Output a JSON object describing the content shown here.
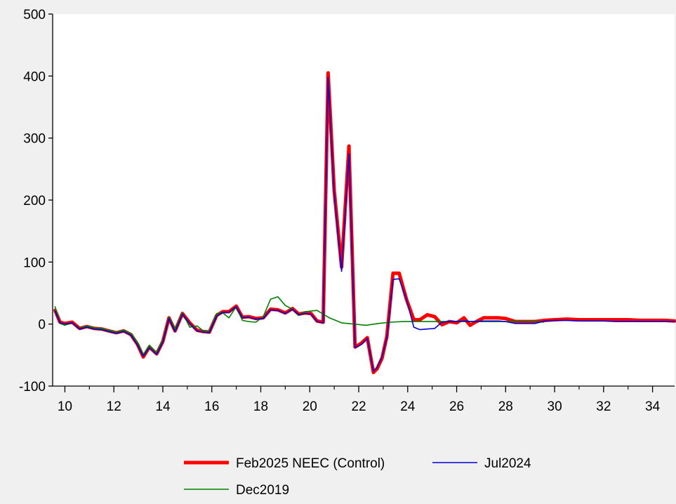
{
  "chart_data": {
    "type": "line",
    "title": "",
    "xlabel": "",
    "ylabel": "",
    "xlim": [
      9.5,
      34.9
    ],
    "ylim": [
      -100,
      500
    ],
    "x_ticks": [
      10,
      12,
      14,
      16,
      18,
      20,
      22,
      24,
      26,
      28,
      30,
      32,
      34
    ],
    "x_tick_labels": [
      "10",
      "12",
      "14",
      "16",
      "18",
      "20",
      "22",
      "24",
      "26",
      "28",
      "30",
      "32",
      "34"
    ],
    "y_ticks": [
      -100,
      0,
      100,
      200,
      300,
      400,
      500
    ],
    "y_tick_labels": [
      "-100",
      "0",
      "100",
      "200",
      "300",
      "400",
      "500"
    ],
    "grid": false,
    "legend_position": "bottom",
    "series": [
      {
        "name": "Feb2025 NEEC (Control)",
        "color": "#ff0000",
        "x": [
          9.6,
          9.8,
          10.0,
          10.3,
          10.6,
          10.9,
          11.2,
          11.5,
          11.8,
          12.1,
          12.4,
          12.7,
          12.97,
          13.2,
          13.45,
          13.75,
          14.0,
          14.25,
          14.5,
          14.8,
          15.1,
          15.4,
          15.65,
          15.9,
          16.2,
          16.45,
          16.7,
          17.0,
          17.25,
          17.5,
          17.8,
          18.1,
          18.4,
          18.7,
          19.0,
          19.3,
          19.55,
          19.8,
          20.05,
          20.3,
          20.55,
          20.75,
          21.0,
          21.3,
          21.6,
          21.85,
          22.1,
          22.35,
          22.6,
          22.75,
          22.95,
          23.15,
          23.4,
          23.65,
          23.95,
          24.25,
          24.5,
          24.8,
          25.1,
          25.4,
          25.7,
          26.0,
          26.3,
          26.55,
          26.8,
          27.1,
          27.4,
          27.7,
          28.0,
          28.4,
          28.8,
          29.2,
          29.6,
          30.0,
          30.5,
          31.0,
          31.5,
          32.0,
          32.5,
          33.0,
          33.5,
          34.0,
          34.5,
          34.9
        ],
        "values": [
          22,
          3,
          1,
          3,
          -7,
          -4,
          -7,
          -8,
          -11,
          -14,
          -11,
          -17,
          -33,
          -53,
          -37,
          -48,
          -28,
          10,
          -11,
          17,
          2,
          -10,
          -12,
          -13,
          14,
          20,
          20,
          29,
          11,
          12,
          9,
          10,
          24,
          23,
          18,
          25,
          16,
          18,
          17,
          5,
          3,
          405,
          215,
          92,
          287,
          -37,
          -31,
          -22,
          -78,
          -72,
          -55,
          -20,
          82,
          82,
          40,
          7,
          7,
          15,
          12,
          -1,
          4,
          2,
          10,
          -2,
          4,
          10,
          10,
          10,
          9,
          4,
          4,
          4,
          6,
          7,
          8,
          7,
          7,
          7,
          7,
          7,
          6,
          6,
          6,
          5
        ]
      },
      {
        "name": "Jul2024",
        "color": "#0000d8",
        "x": [
          9.6,
          9.8,
          10.0,
          10.3,
          10.6,
          10.9,
          11.2,
          11.5,
          11.8,
          12.1,
          12.4,
          12.7,
          12.97,
          13.2,
          13.45,
          13.75,
          14.0,
          14.25,
          14.5,
          14.8,
          15.1,
          15.4,
          15.65,
          15.9,
          16.2,
          16.45,
          16.7,
          17.0,
          17.25,
          17.5,
          17.8,
          18.1,
          18.4,
          18.7,
          19.0,
          19.3,
          19.55,
          19.8,
          20.05,
          20.3,
          20.55,
          20.75,
          21.0,
          21.3,
          21.6,
          21.85,
          22.1,
          22.35,
          22.6,
          22.75,
          22.95,
          23.15,
          23.4,
          23.65,
          23.95,
          24.25,
          24.5,
          24.8,
          25.1,
          25.4,
          25.7,
          26.0,
          26.3,
          26.55,
          26.8,
          27.1,
          27.4,
          27.7,
          28.0,
          28.4,
          28.8,
          29.2,
          29.6,
          30.0,
          30.5,
          31.0,
          31.5,
          32.0,
          32.5,
          33.0,
          33.5,
          34.0,
          34.5,
          34.9
        ],
        "values": [
          21,
          2,
          0,
          2,
          -8,
          -5,
          -8,
          -9,
          -12,
          -15,
          -12,
          -18,
          -34,
          -52,
          -38,
          -49,
          -29,
          9,
          -12,
          16,
          1,
          -11,
          -13,
          -14,
          13,
          19,
          19,
          28,
          10,
          11,
          8,
          9,
          23,
          22,
          17,
          24,
          15,
          17,
          16,
          4,
          2,
          398,
          210,
          85,
          275,
          -38,
          -33,
          -23,
          -76,
          -70,
          -53,
          -22,
          72,
          73,
          40,
          -5,
          -9,
          -8,
          -7,
          3,
          4,
          4,
          5,
          4,
          4,
          5,
          5,
          5,
          4,
          1,
          1,
          1,
          5,
          6,
          6,
          5,
          5,
          5,
          4,
          4,
          4,
          4,
          4,
          4
        ]
      },
      {
        "name": "Dec2019",
        "color": "#008000",
        "x": [
          9.6,
          9.8,
          10.0,
          10.3,
          10.6,
          10.9,
          11.2,
          11.5,
          11.8,
          12.1,
          12.4,
          12.7,
          12.97,
          13.2,
          13.45,
          13.75,
          14.0,
          14.25,
          14.5,
          14.8,
          15.1,
          15.4,
          15.65,
          15.9,
          16.2,
          16.45,
          16.7,
          17.0,
          17.25,
          17.5,
          17.8,
          18.1,
          18.4,
          18.7,
          19.0,
          19.3,
          19.55,
          19.8,
          20.3,
          20.8,
          21.3,
          21.8,
          22.3,
          22.8,
          23.3,
          23.8,
          24.3,
          24.8,
          25.3,
          25.8,
          26.3,
          26.8,
          27.3,
          27.8,
          28.3,
          28.8,
          29.3,
          29.55
        ],
        "values": [
          28,
          1,
          -2,
          2,
          -7,
          -3,
          -6,
          -7,
          -10,
          -13,
          -10,
          -15,
          -30,
          -50,
          -34,
          -46,
          -26,
          11,
          -8,
          18,
          -5,
          -3,
          -11,
          -12,
          17,
          18,
          10,
          28,
          6,
          4,
          3,
          12,
          40,
          44,
          30,
          24,
          14,
          20,
          22,
          10,
          2,
          0,
          -2,
          1,
          3,
          4,
          4,
          4,
          4,
          4,
          4,
          4,
          4,
          4,
          4,
          4,
          4,
          3
        ]
      }
    ]
  }
}
